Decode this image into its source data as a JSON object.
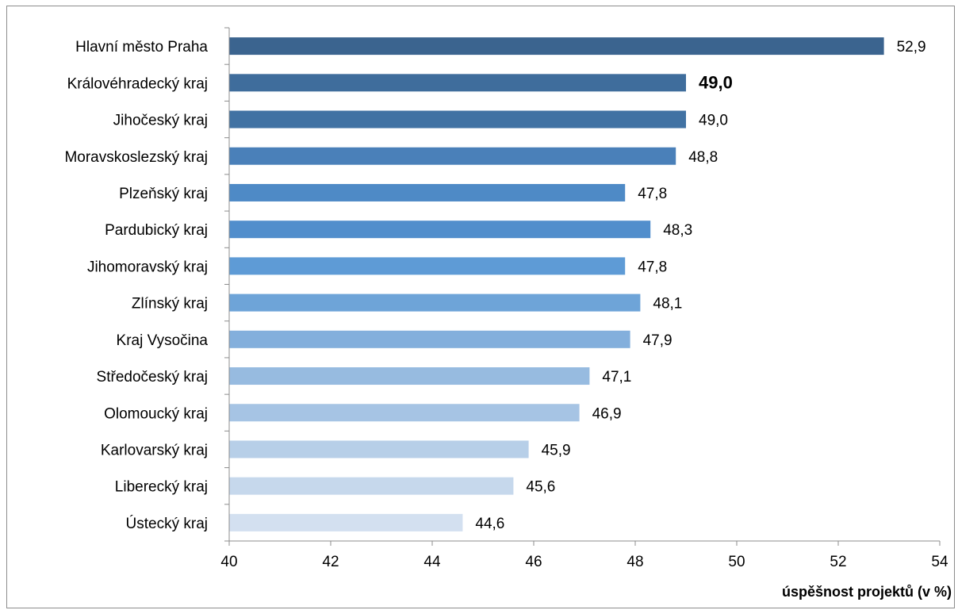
{
  "chart_data": {
    "type": "bar",
    "orientation": "horizontal",
    "title": "",
    "xlabel": "úspěšnost projektů (v %)",
    "ylabel": "",
    "xlim": [
      40,
      54
    ],
    "xticks": [
      "40",
      "42",
      "44",
      "46",
      "48",
      "50",
      "52",
      "54"
    ],
    "grid": false,
    "categories": [
      "Hlavní město Praha",
      "Královéhradecký kraj",
      "Jihočeský kraj",
      "Moravskoslezský kraj",
      "Plzeňský kraj",
      "Pardubický kraj",
      "Jihomoravský kraj",
      "Zlínský kraj",
      "Kraj Vysočina",
      "Středočeský kraj",
      "Olomoucký kraj",
      "Karlovarský kraj",
      "Liberecký kraj",
      "Ústecký kraj"
    ],
    "values": [
      52.9,
      49.0,
      49.0,
      48.8,
      47.8,
      48.3,
      47.8,
      48.1,
      47.9,
      47.1,
      46.9,
      45.9,
      45.6,
      44.6
    ],
    "value_labels": [
      "52,9",
      "49,0",
      "49,0",
      "48,8",
      "47,8",
      "48,3",
      "47,8",
      "48,1",
      "47,9",
      "47,1",
      "46,9",
      "45,9",
      "45,6",
      "44,6"
    ],
    "highlight_index": 1,
    "colors": [
      "#3b648f",
      "#3f6d9c",
      "#4172a3",
      "#4a80b9",
      "#4e8ac6",
      "#518ecc",
      "#5e9bd6",
      "#6ea4d8",
      "#83afdc",
      "#97bbe0",
      "#a6c4e4",
      "#b7cfe8",
      "#c6d8ec",
      "#d3e0f0"
    ]
  }
}
